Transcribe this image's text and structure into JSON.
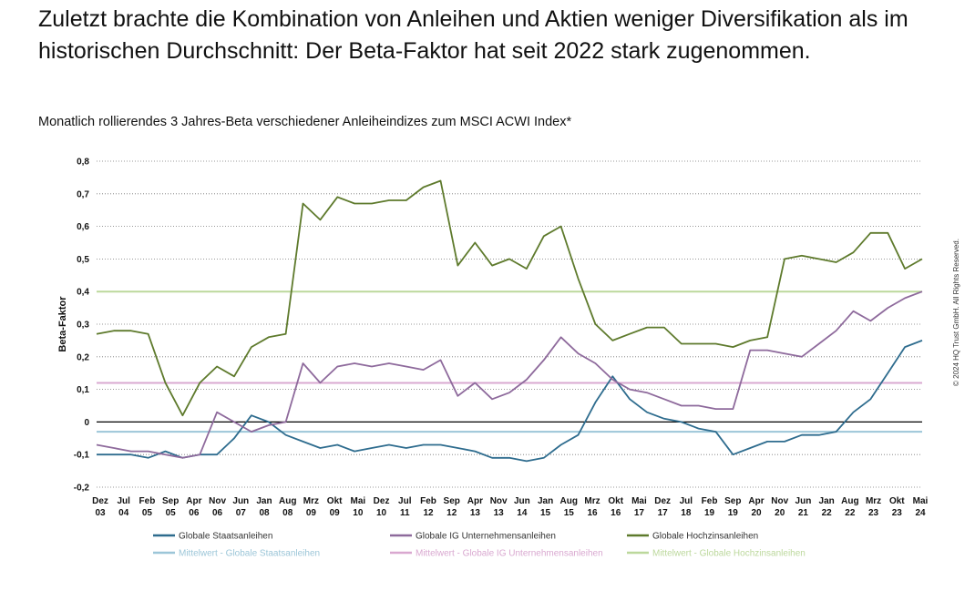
{
  "headline": "Zuletzt brachte die Kombination von Anleihen und Aktien weniger Diversifikation als im historischen Durchschnitt: Der Beta-Faktor hat seit 2022 stark zugenommen.",
  "subtitle": "Monatlich rollierendes 3 Jahres-Beta verschiedener Anleiheindizes zum MSCI ACWI Index*",
  "copyright": "© 2024 HQ Trust GmbH. All Rights Reserved.",
  "chart_data": {
    "type": "line",
    "ylabel": "Beta-Faktor",
    "ylim": [
      -0.2,
      0.8
    ],
    "yticks": [
      "0,8",
      "0,7",
      "0,6",
      "0,5",
      "0,4",
      "0,3",
      "0,2",
      "0,1",
      "0",
      "-0,1",
      "-0,2"
    ],
    "grid": "horizontal dotted",
    "legend_position": "bottom",
    "x_ticks": [
      [
        "Dez",
        "03"
      ],
      [
        "Jul",
        "04"
      ],
      [
        "Feb",
        "05"
      ],
      [
        "Sep",
        "05"
      ],
      [
        "Apr",
        "06"
      ],
      [
        "Nov",
        "06"
      ],
      [
        "Jun",
        "07"
      ],
      [
        "Jan",
        "08"
      ],
      [
        "Aug",
        "08"
      ],
      [
        "Mrz",
        "09"
      ],
      [
        "Okt",
        "09"
      ],
      [
        "Mai",
        "10"
      ],
      [
        "Dez",
        "10"
      ],
      [
        "Jul",
        "11"
      ],
      [
        "Feb",
        "12"
      ],
      [
        "Sep",
        "12"
      ],
      [
        "Apr",
        "13"
      ],
      [
        "Nov",
        "13"
      ],
      [
        "Jun",
        "14"
      ],
      [
        "Jan",
        "15"
      ],
      [
        "Aug",
        "15"
      ],
      [
        "Mrz",
        "16"
      ],
      [
        "Okt",
        "16"
      ],
      [
        "Mai",
        "17"
      ],
      [
        "Dez",
        "17"
      ],
      [
        "Jul",
        "18"
      ],
      [
        "Feb",
        "19"
      ],
      [
        "Sep",
        "19"
      ],
      [
        "Apr",
        "20"
      ],
      [
        "Nov",
        "20"
      ],
      [
        "Jun",
        "21"
      ],
      [
        "Jan",
        "22"
      ],
      [
        "Aug",
        "22"
      ],
      [
        "Mrz",
        "23"
      ],
      [
        "Okt",
        "23"
      ],
      [
        "Mai",
        "24"
      ]
    ],
    "series": [
      {
        "name": "Globale Staatsanleihen",
        "color": "#2e6c8e",
        "values": [
          -0.1,
          -0.1,
          -0.1,
          -0.11,
          -0.09,
          -0.11,
          -0.1,
          -0.1,
          -0.05,
          0.02,
          0.0,
          -0.04,
          -0.06,
          -0.08,
          -0.07,
          -0.09,
          -0.08,
          -0.07,
          -0.08,
          -0.07,
          -0.07,
          -0.08,
          -0.09,
          -0.11,
          -0.11,
          -0.12,
          -0.11,
          -0.07,
          -0.04,
          0.06,
          0.14,
          0.07,
          0.03,
          0.01,
          0.0,
          -0.02,
          -0.03,
          -0.1,
          -0.08,
          -0.06,
          -0.06,
          -0.04,
          -0.04,
          -0.03,
          0.03,
          0.07,
          0.15,
          0.23,
          0.25
        ]
      },
      {
        "name": "Globale IG Unternehmensanleihen",
        "color": "#8e6a9c",
        "values": [
          -0.07,
          -0.08,
          -0.09,
          -0.09,
          -0.1,
          -0.11,
          -0.1,
          0.03,
          0.0,
          -0.03,
          -0.01,
          0.0,
          0.18,
          0.12,
          0.17,
          0.18,
          0.17,
          0.18,
          0.17,
          0.16,
          0.19,
          0.08,
          0.12,
          0.07,
          0.09,
          0.13,
          0.19,
          0.26,
          0.21,
          0.18,
          0.13,
          0.1,
          0.09,
          0.07,
          0.05,
          0.05,
          0.04,
          0.04,
          0.22,
          0.22,
          0.21,
          0.2,
          0.24,
          0.28,
          0.34,
          0.31,
          0.35,
          0.38,
          0.4
        ]
      },
      {
        "name": "Globale Hochzinsanleihen",
        "color": "#5e7a2c",
        "values": [
          0.27,
          0.28,
          0.28,
          0.27,
          0.12,
          0.02,
          0.12,
          0.17,
          0.14,
          0.23,
          0.26,
          0.27,
          0.67,
          0.62,
          0.69,
          0.67,
          0.67,
          0.68,
          0.68,
          0.72,
          0.74,
          0.48,
          0.55,
          0.48,
          0.5,
          0.47,
          0.57,
          0.6,
          0.44,
          0.3,
          0.25,
          0.27,
          0.29,
          0.29,
          0.24,
          0.24,
          0.24,
          0.23,
          0.25,
          0.26,
          0.5,
          0.51,
          0.5,
          0.49,
          0.52,
          0.58,
          0.58,
          0.47,
          0.5
        ]
      },
      {
        "name": "Mittelwert - Globale Staatsanleihen",
        "color": "#9cc6d8",
        "mean": -0.03
      },
      {
        "name": "Mittelwert - Globale IG Unternehmensanleihen",
        "color": "#d9a8d0",
        "mean": 0.12
      },
      {
        "name": "Mittelwert - Globale Hochzinsanleihen",
        "color": "#bcd89c",
        "mean": 0.4
      }
    ]
  }
}
